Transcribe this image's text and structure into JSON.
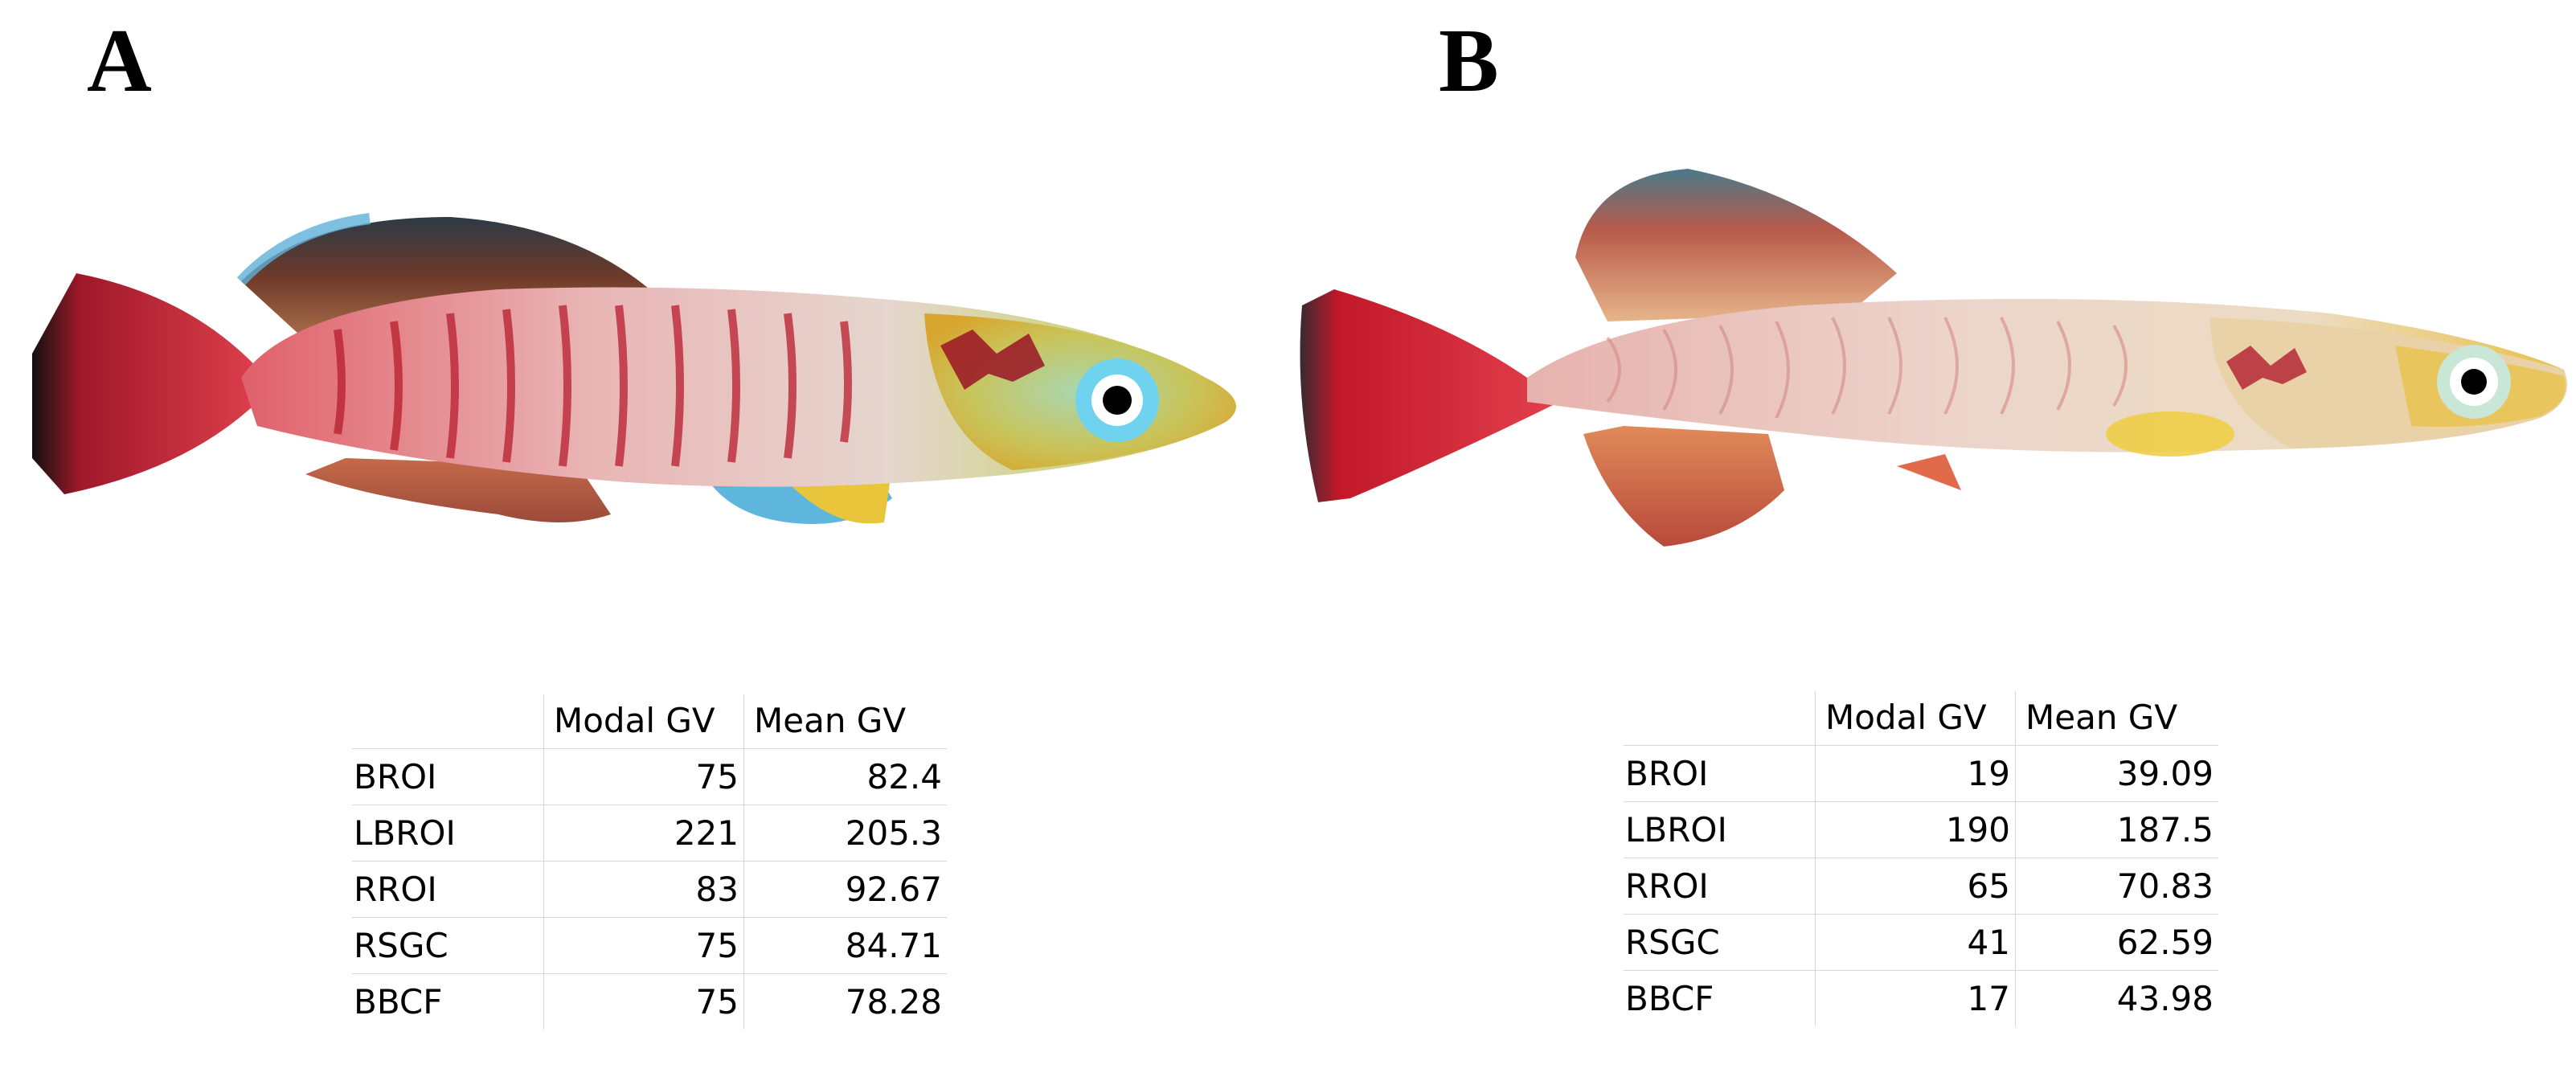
{
  "panels": [
    {
      "letter": "A",
      "table": {
        "headers": [
          "",
          "Modal GV",
          "Mean GV"
        ],
        "rows": [
          {
            "label": "BROI",
            "modal": "75",
            "mean": "82.4"
          },
          {
            "label": "LBROI",
            "modal": "221",
            "mean": "205.3"
          },
          {
            "label": "RROI",
            "modal": "83",
            "mean": "92.67"
          },
          {
            "label": "RSGC",
            "modal": "75",
            "mean": "84.71"
          },
          {
            "label": "BBCF",
            "modal": "75",
            "mean": "78.28"
          }
        ]
      }
    },
    {
      "letter": "B",
      "table": {
        "headers": [
          "",
          "Modal GV",
          "Mean GV"
        ],
        "rows": [
          {
            "label": "BROI",
            "modal": "19",
            "mean": "39.09"
          },
          {
            "label": "LBROI",
            "modal": "190",
            "mean": "187.5"
          },
          {
            "label": "RROI",
            "modal": "65",
            "mean": "70.83"
          },
          {
            "label": "RSGC",
            "modal": "41",
            "mean": "62.59"
          },
          {
            "label": "BBCF",
            "modal": "17",
            "mean": "43.98"
          }
        ]
      }
    }
  ]
}
